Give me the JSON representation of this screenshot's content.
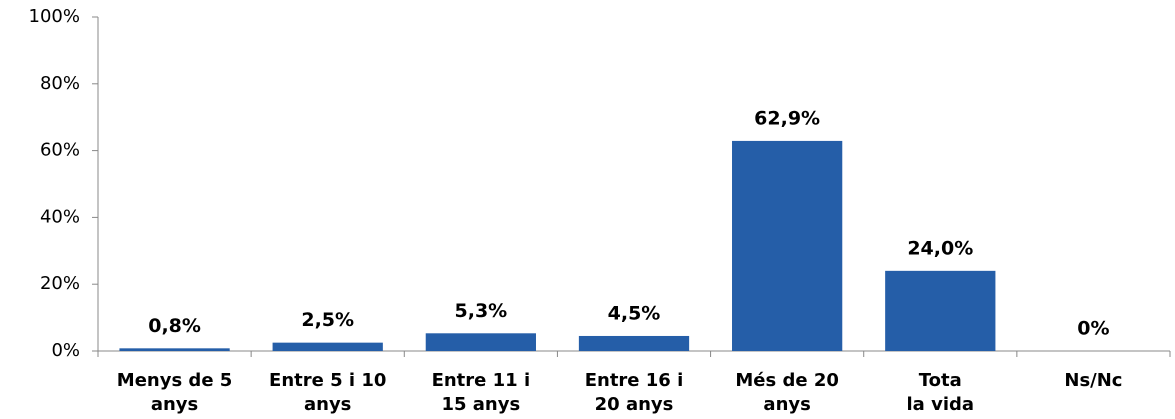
{
  "chart_data": {
    "type": "bar",
    "categories": [
      "Menys de 5\nanys",
      "Entre 5 i 10\nanys",
      "Entre 11 i\n15 anys",
      "Entre 16 i\n20 anys",
      "Més de 20\nanys",
      "Tota\nla vida",
      "Ns/Nc"
    ],
    "values": [
      0.8,
      2.5,
      5.3,
      4.5,
      62.9,
      24.0,
      0
    ],
    "value_labels": [
      "0,8%",
      "2,5%",
      "5,3%",
      "4,5%",
      "62,9%",
      "24,0%",
      "0%"
    ],
    "color": "#255ea8",
    "ylim": [
      0,
      100
    ],
    "yticks": [
      {
        "value": 0,
        "label": "0%"
      },
      {
        "value": 20,
        "label": "20%"
      },
      {
        "value": 40,
        "label": "40%"
      },
      {
        "value": 60,
        "label": "60%"
      },
      {
        "value": 80,
        "label": "80%"
      },
      {
        "value": 100,
        "label": "100%"
      }
    ]
  }
}
